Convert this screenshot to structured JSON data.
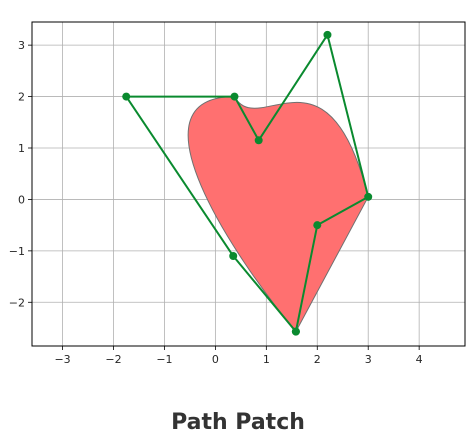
{
  "chart_data": {
    "type": "line",
    "title": "Path Patch",
    "xlabel": "",
    "ylabel": "",
    "xlim": [
      -3.6,
      4.9
    ],
    "ylim": [
      -2.85,
      3.45
    ],
    "xticks": [
      -3,
      -2,
      -1,
      0,
      1,
      2,
      3,
      4
    ],
    "yticks": [
      -2,
      -1,
      0,
      1,
      2,
      3
    ],
    "xtick_labels": [
      "−3",
      "−2",
      "−1",
      "0",
      "1",
      "2",
      "3",
      "4"
    ],
    "ytick_labels": [
      "−2",
      "−1",
      "0",
      "1",
      "2",
      "3"
    ],
    "grid": true,
    "patch": {
      "fill_color": "#ff7070",
      "edge_color": "#707070",
      "vertices": [
        [
          1.58,
          -2.57
        ],
        [
          0.35,
          -1.1
        ],
        [
          -1.75,
          2.0
        ],
        [
          0.375,
          2.0
        ],
        [
          0.85,
          1.15
        ],
        [
          2.2,
          3.2
        ],
        [
          3.0,
          0.05
        ],
        [
          2.0,
          -0.5
        ],
        [
          1.58,
          -2.57
        ]
      ],
      "codes": [
        "MOVETO",
        "CURVE4",
        "CURVE4",
        "CURVE4",
        "CURVE4",
        "CURVE4",
        "CURVE4",
        "CURVE4",
        "CLOSEPOLY"
      ]
    },
    "series": [
      {
        "color": "#0a8a2f",
        "x": [
          1.58,
          0.35,
          -1.75,
          0.375,
          0.85,
          2.2,
          3.0,
          2.0,
          1.58
        ],
        "y": [
          -2.57,
          -1.1,
          2.0,
          2.0,
          1.15,
          3.2,
          0.05,
          -0.5,
          -2.57
        ]
      }
    ]
  }
}
